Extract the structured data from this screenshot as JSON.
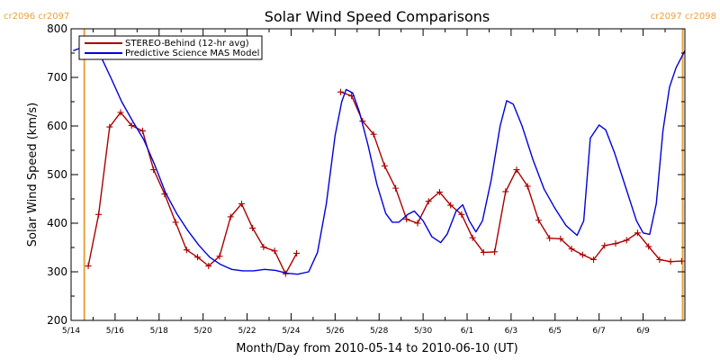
{
  "chart_data": {
    "type": "line",
    "title": "Solar Wind Speed Comparisons",
    "ylabel": "Solar Wind Speed (km/s)",
    "xlabel": "Month/Day from 2010-05-14 to 2010-06-10 (UT)",
    "ylim": [
      200,
      800
    ],
    "xlim": [
      0,
      27.9
    ],
    "yticks": [
      "200",
      "300",
      "400",
      "500",
      "600",
      "700",
      "800"
    ],
    "xticks": [
      {
        "x": 0,
        "label": "5/14"
      },
      {
        "x": 2,
        "label": "5/16"
      },
      {
        "x": 4,
        "label": "5/18"
      },
      {
        "x": 6,
        "label": "5/20"
      },
      {
        "x": 8,
        "label": "5/22"
      },
      {
        "x": 10,
        "label": "5/24"
      },
      {
        "x": 12,
        "label": "5/26"
      },
      {
        "x": 14,
        "label": "5/28"
      },
      {
        "x": 16,
        "label": "5/30"
      },
      {
        "x": 18,
        "label": "6/1"
      },
      {
        "x": 20,
        "label": "6/3"
      },
      {
        "x": 22,
        "label": "6/5"
      },
      {
        "x": 24,
        "label": "6/7"
      },
      {
        "x": 26,
        "label": "6/9"
      }
    ],
    "legend_position": "top-left",
    "carrington_markers": [
      {
        "x": 0.6,
        "label": "cr2096 cr2097",
        "side": "left"
      },
      {
        "x": 27.8,
        "label": "cr2097 cr2098",
        "side": "right"
      }
    ],
    "series": [
      {
        "name": "STEREO-Behind (12-hr avg)",
        "color": "#aa0000",
        "marker": "plus",
        "points": [
          [
            0.78,
            312
          ],
          [
            1.25,
            418
          ],
          [
            1.75,
            598
          ],
          [
            2.25,
            628
          ],
          [
            2.75,
            601
          ],
          [
            3.25,
            590
          ],
          [
            3.75,
            510
          ],
          [
            4.25,
            460
          ],
          [
            4.75,
            402
          ],
          [
            5.25,
            345
          ],
          [
            5.75,
            330
          ],
          [
            6.25,
            312
          ],
          [
            6.75,
            332
          ],
          [
            7.25,
            413
          ],
          [
            7.75,
            440
          ],
          [
            8.25,
            390
          ],
          [
            8.75,
            351
          ],
          [
            9.25,
            343
          ],
          [
            9.75,
            296
          ],
          [
            10.25,
            338
          ],
          [
            null,
            null
          ],
          [
            12.25,
            670
          ],
          [
            12.75,
            662
          ],
          [
            13.25,
            610
          ],
          [
            13.75,
            583
          ],
          [
            14.25,
            518
          ],
          [
            14.75,
            472
          ],
          [
            15.25,
            408
          ],
          [
            15.75,
            400
          ],
          [
            16.25,
            445
          ],
          [
            16.75,
            464
          ],
          [
            17.25,
            437
          ],
          [
            17.75,
            418
          ],
          [
            18.25,
            370
          ],
          [
            18.75,
            340
          ],
          [
            19.25,
            341
          ],
          [
            19.75,
            465
          ],
          [
            20.25,
            510
          ],
          [
            20.75,
            476
          ],
          [
            21.25,
            406
          ],
          [
            21.75,
            369
          ],
          [
            22.25,
            368
          ],
          [
            22.75,
            347
          ],
          [
            23.25,
            335
          ],
          [
            23.75,
            325
          ],
          [
            24.25,
            354
          ],
          [
            24.75,
            358
          ],
          [
            25.25,
            365
          ],
          [
            25.75,
            380
          ],
          [
            26.25,
            352
          ],
          [
            26.75,
            325
          ],
          [
            27.25,
            321
          ],
          [
            27.75,
            322
          ]
        ]
      },
      {
        "name": "Predictive Science MAS Model",
        "color": "#0000dd",
        "marker": "none",
        "points": [
          [
            0.1,
            755
          ],
          [
            0.4,
            760
          ],
          [
            0.8,
            757
          ],
          [
            1.3,
            748
          ],
          [
            1.8,
            700
          ],
          [
            2.3,
            650
          ],
          [
            2.8,
            610
          ],
          [
            3.3,
            572
          ],
          [
            3.8,
            520
          ],
          [
            4.3,
            462
          ],
          [
            4.8,
            420
          ],
          [
            5.3,
            385
          ],
          [
            5.8,
            355
          ],
          [
            6.3,
            330
          ],
          [
            6.8,
            315
          ],
          [
            7.3,
            305
          ],
          [
            7.8,
            302
          ],
          [
            8.3,
            302
          ],
          [
            8.8,
            305
          ],
          [
            9.3,
            303
          ],
          [
            9.8,
            297
          ],
          [
            10.3,
            295
          ],
          [
            10.8,
            300
          ],
          [
            11.2,
            340
          ],
          [
            11.6,
            440
          ],
          [
            12.0,
            580
          ],
          [
            12.3,
            650
          ],
          [
            12.5,
            675
          ],
          [
            12.8,
            668
          ],
          [
            13.1,
            630
          ],
          [
            13.5,
            560
          ],
          [
            13.9,
            480
          ],
          [
            14.3,
            420
          ],
          [
            14.6,
            402
          ],
          [
            14.9,
            402
          ],
          [
            15.3,
            418
          ],
          [
            15.6,
            425
          ],
          [
            16.0,
            405
          ],
          [
            16.4,
            372
          ],
          [
            16.8,
            360
          ],
          [
            17.1,
            378
          ],
          [
            17.5,
            425
          ],
          [
            17.8,
            438
          ],
          [
            18.1,
            405
          ],
          [
            18.4,
            382
          ],
          [
            18.7,
            405
          ],
          [
            19.1,
            490
          ],
          [
            19.5,
            600
          ],
          [
            19.8,
            652
          ],
          [
            20.1,
            645
          ],
          [
            20.5,
            600
          ],
          [
            21.0,
            530
          ],
          [
            21.5,
            470
          ],
          [
            22.0,
            430
          ],
          [
            22.5,
            395
          ],
          [
            23.0,
            375
          ],
          [
            23.3,
            405
          ],
          [
            23.6,
            575
          ],
          [
            24.0,
            602
          ],
          [
            24.3,
            592
          ],
          [
            24.7,
            545
          ],
          [
            25.2,
            475
          ],
          [
            25.7,
            405
          ],
          [
            26.0,
            380
          ],
          [
            26.3,
            377
          ],
          [
            26.6,
            440
          ],
          [
            26.9,
            590
          ],
          [
            27.2,
            680
          ],
          [
            27.5,
            720
          ],
          [
            27.9,
            755
          ]
        ]
      }
    ]
  }
}
